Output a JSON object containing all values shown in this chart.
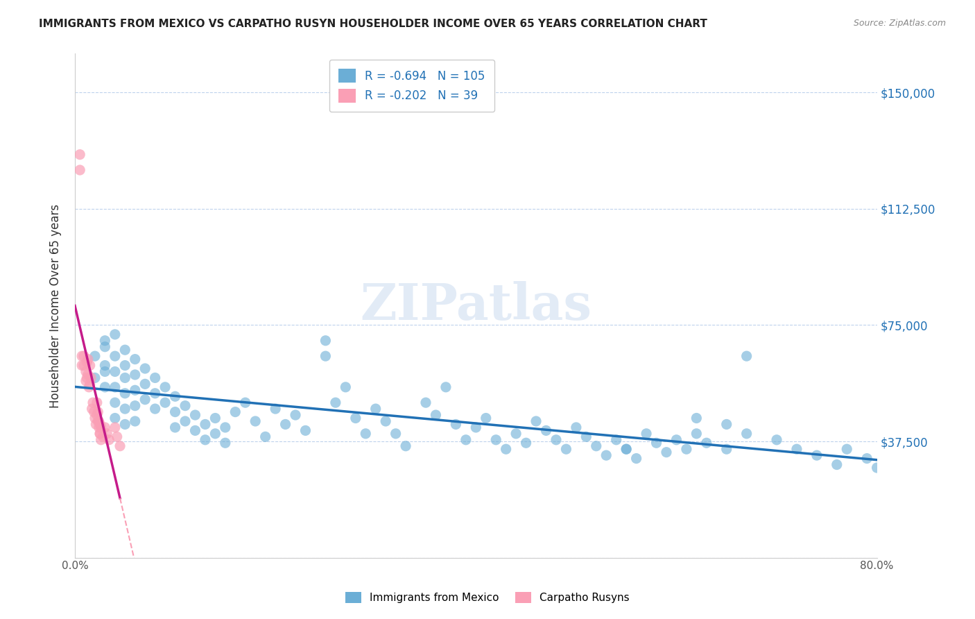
{
  "title": "IMMIGRANTS FROM MEXICO VS CARPATHO RUSYN HOUSEHOLDER INCOME OVER 65 YEARS CORRELATION CHART",
  "source": "Source: ZipAtlas.com",
  "ylabel": "Householder Income Over 65 years",
  "xlabel": "",
  "xlim": [
    0.0,
    0.8
  ],
  "ylim": [
    0,
    162500
  ],
  "yticks": [
    0,
    37500,
    75000,
    112500,
    150000
  ],
  "ytick_labels": [
    "",
    "$37,500",
    "$75,000",
    "$112,500",
    "$150,000"
  ],
  "xticks": [
    0.0,
    0.1,
    0.2,
    0.3,
    0.4,
    0.5,
    0.6,
    0.7,
    0.8
  ],
  "xtick_labels": [
    "0.0%",
    "",
    "",
    "",
    "",
    "",
    "",
    "",
    "80.0%"
  ],
  "blue_R": -0.694,
  "blue_N": 105,
  "pink_R": -0.202,
  "pink_N": 39,
  "blue_color": "#6baed6",
  "pink_color": "#fa9fb5",
  "blue_line_color": "#2171b5",
  "pink_line_color": "#c51b8a",
  "pink_dashed_color": "#fa9fb5",
  "watermark": "ZIPatlas",
  "legend_label_blue": "Immigrants from Mexico",
  "legend_label_pink": "Carpatho Rusyns",
  "blue_scatter_x": [
    0.02,
    0.02,
    0.03,
    0.03,
    0.03,
    0.03,
    0.03,
    0.04,
    0.04,
    0.04,
    0.04,
    0.04,
    0.04,
    0.05,
    0.05,
    0.05,
    0.05,
    0.05,
    0.05,
    0.06,
    0.06,
    0.06,
    0.06,
    0.06,
    0.07,
    0.07,
    0.07,
    0.08,
    0.08,
    0.08,
    0.09,
    0.09,
    0.1,
    0.1,
    0.1,
    0.11,
    0.11,
    0.12,
    0.12,
    0.13,
    0.13,
    0.14,
    0.14,
    0.15,
    0.15,
    0.16,
    0.17,
    0.18,
    0.19,
    0.2,
    0.21,
    0.22,
    0.23,
    0.25,
    0.25,
    0.26,
    0.27,
    0.28,
    0.29,
    0.3,
    0.31,
    0.32,
    0.33,
    0.35,
    0.36,
    0.37,
    0.38,
    0.39,
    0.4,
    0.41,
    0.42,
    0.43,
    0.44,
    0.45,
    0.46,
    0.47,
    0.48,
    0.49,
    0.5,
    0.51,
    0.52,
    0.53,
    0.54,
    0.55,
    0.56,
    0.57,
    0.58,
    0.59,
    0.6,
    0.61,
    0.62,
    0.63,
    0.65,
    0.67,
    0.7,
    0.72,
    0.74,
    0.76,
    0.77,
    0.79,
    0.8,
    0.55,
    0.62,
    0.65,
    0.67
  ],
  "blue_scatter_y": [
    65000,
    58000,
    70000,
    62000,
    55000,
    60000,
    68000,
    72000,
    65000,
    60000,
    55000,
    50000,
    45000,
    67000,
    62000,
    58000,
    53000,
    48000,
    43000,
    64000,
    59000,
    54000,
    49000,
    44000,
    61000,
    56000,
    51000,
    58000,
    53000,
    48000,
    55000,
    50000,
    52000,
    47000,
    42000,
    49000,
    44000,
    46000,
    41000,
    43000,
    38000,
    45000,
    40000,
    42000,
    37000,
    47000,
    50000,
    44000,
    39000,
    48000,
    43000,
    46000,
    41000,
    70000,
    65000,
    50000,
    55000,
    45000,
    40000,
    48000,
    44000,
    40000,
    36000,
    50000,
    46000,
    55000,
    43000,
    38000,
    42000,
    45000,
    38000,
    35000,
    40000,
    37000,
    44000,
    41000,
    38000,
    35000,
    42000,
    39000,
    36000,
    33000,
    38000,
    35000,
    32000,
    40000,
    37000,
    34000,
    38000,
    35000,
    40000,
    37000,
    43000,
    65000,
    38000,
    35000,
    33000,
    30000,
    35000,
    32000,
    29000,
    35000,
    45000,
    35000,
    40000
  ],
  "pink_scatter_x": [
    0.005,
    0.005,
    0.007,
    0.007,
    0.009,
    0.009,
    0.011,
    0.011,
    0.012,
    0.012,
    0.013,
    0.013,
    0.014,
    0.015,
    0.015,
    0.016,
    0.017,
    0.018,
    0.019,
    0.02,
    0.021,
    0.022,
    0.023,
    0.024,
    0.025,
    0.025,
    0.026,
    0.028,
    0.03,
    0.032,
    0.034,
    0.04,
    0.042,
    0.045,
    0.022,
    0.023,
    0.024,
    0.025,
    0.026
  ],
  "pink_scatter_y": [
    130000,
    125000,
    65000,
    62000,
    65000,
    62000,
    60000,
    57000,
    63000,
    58000,
    64000,
    59000,
    55000,
    62000,
    56000,
    58000,
    48000,
    50000,
    47000,
    45000,
    43000,
    50000,
    47000,
    44000,
    43000,
    40000,
    42000,
    39000,
    42000,
    40000,
    38000,
    42000,
    39000,
    36000,
    46000,
    44000,
    42000,
    40000,
    38000
  ]
}
